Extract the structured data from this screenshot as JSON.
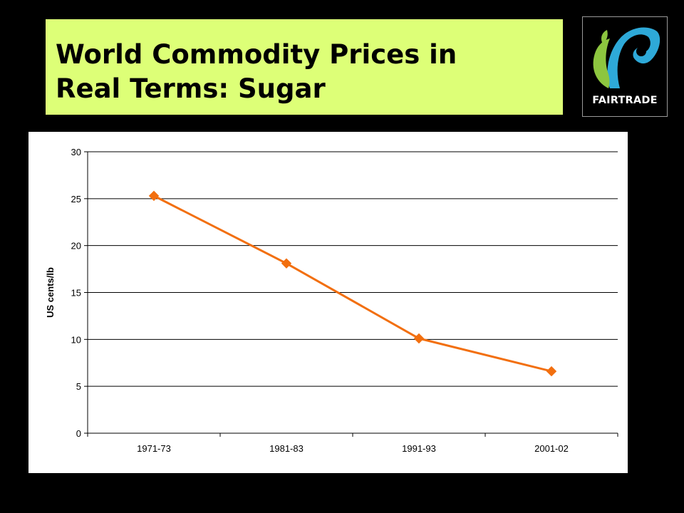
{
  "slide": {
    "title_line1": "World Commodity Prices in",
    "title_line2": "Real Terms: Sugar",
    "title_bg": "#ddff77"
  },
  "logo": {
    "text": "FAIRTRADE",
    "colors": {
      "blue": "#2ea9d8",
      "green": "#8dc63f",
      "black": "#000000"
    }
  },
  "chart_data": {
    "type": "line",
    "title": "",
    "xlabel": "",
    "ylabel": "US cents/lb",
    "categories": [
      "1971-73",
      "1981-83",
      "1991-93",
      "2001-02"
    ],
    "series": [
      {
        "values": [
          25.3,
          18.1,
          10.1,
          6.6
        ],
        "color": "#f26f0f",
        "marker": "diamond"
      }
    ],
    "ylim": [
      0,
      30
    ],
    "yticks": [
      0,
      5,
      10,
      15,
      20,
      25,
      30
    ],
    "grid": true,
    "legend": "none"
  }
}
